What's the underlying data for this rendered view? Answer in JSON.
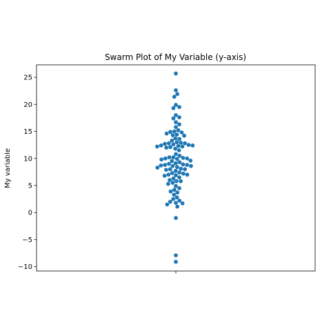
{
  "chart_data": {
    "type": "scatter",
    "subtype": "swarm",
    "title": "Swarm Plot of My Variable (y-axis)",
    "xlabel": "",
    "ylabel": "My variable",
    "ylim": [
      -10.8,
      27.3
    ],
    "yticks": [
      -10,
      -5,
      0,
      5,
      10,
      15,
      20,
      25
    ],
    "ytick_labels": [
      "−10",
      "−5",
      "0",
      "5",
      "10",
      "15",
      "20",
      "25"
    ],
    "grid": false,
    "legend": "none",
    "color": "#1f77b4",
    "values": [
      25.7,
      22.6,
      21.9,
      21.4,
      19.9,
      19.5,
      19.3,
      18.0,
      17.6,
      17.4,
      16.7,
      16.3,
      15.8,
      15.2,
      15.0,
      14.9,
      14.8,
      14.6,
      14.4,
      14.3,
      14.2,
      13.7,
      13.6,
      13.3,
      13.0,
      12.9,
      12.8,
      12.8,
      12.7,
      12.6,
      12.5,
      12.4,
      12.4,
      12.3,
      12.2,
      12.2,
      12.1,
      12.0,
      11.8,
      11.5,
      10.8,
      10.5,
      10.2,
      10.2,
      10.1,
      10.0,
      10.0,
      9.9,
      9.8,
      9.6,
      9.5,
      9.3,
      9.1,
      9.0,
      8.9,
      8.8,
      8.8,
      8.7,
      8.6,
      8.6,
      8.4,
      8.3,
      8.1,
      8.0,
      8.0,
      7.9,
      7.7,
      7.4,
      7.3,
      7.2,
      7.0,
      7.0,
      6.9,
      6.8,
      6.5,
      6.3,
      6.0,
      5.8,
      5.8,
      5.5,
      5.3,
      4.9,
      4.5,
      4.2,
      3.9,
      3.7,
      3.3,
      2.8,
      2.5,
      2.2,
      2.0,
      1.8,
      1.7,
      1.5,
      1.1,
      -1.0,
      -7.9,
      -9.1
    ]
  }
}
